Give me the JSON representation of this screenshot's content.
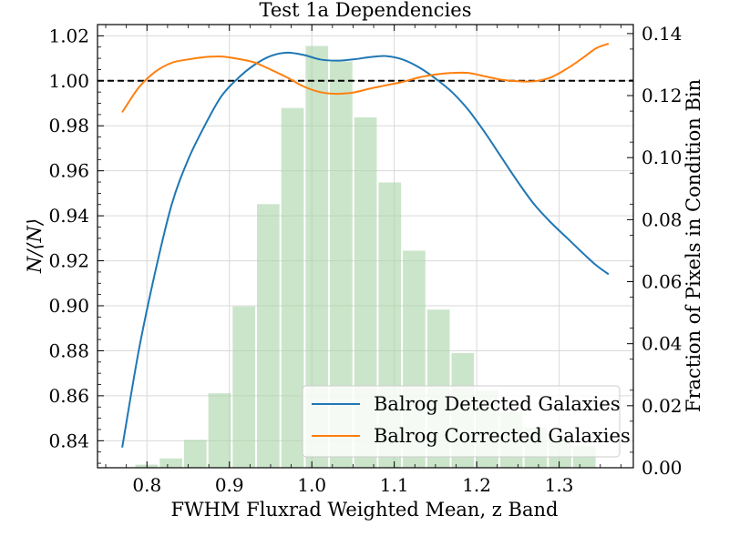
{
  "chart_data": {
    "type": "line",
    "title": "Test 1a Dependencies",
    "xlabel": "FWHM Fluxrad Weighted Mean, z Band",
    "ylabel": "N/⟨N⟩",
    "y2label": "Fraction of Pixels in Condition Bin",
    "xlim": [
      0.74,
      1.39
    ],
    "ylim": [
      0.828,
      1.025
    ],
    "y2lim": [
      0.0,
      0.1429
    ],
    "xticks": [
      "0.8",
      "0.9",
      "1.0",
      "1.1",
      "1.2",
      "1.3"
    ],
    "yticks": [
      "0.84",
      "0.86",
      "0.88",
      "0.90",
      "0.92",
      "0.94",
      "0.96",
      "0.98",
      "1.00",
      "1.02"
    ],
    "y2ticks": [
      "0.00",
      "0.02",
      "0.04",
      "0.06",
      "0.08",
      "0.10",
      "0.12",
      "0.14"
    ],
    "grid": true,
    "legend_position": "lower-right",
    "reference_line": {
      "y": 1.0,
      "style": "dashed",
      "color": "#000000"
    },
    "histogram": {
      "color": "#a9d3a6",
      "axis": "right",
      "bin_width": 0.0295,
      "bins": [
        {
          "x": 0.7701,
          "value": 0.0
        },
        {
          "x": 0.7996,
          "value": 0.001
        },
        {
          "x": 0.8291,
          "value": 0.003
        },
        {
          "x": 0.8586,
          "value": 0.009
        },
        {
          "x": 0.8881,
          "value": 0.024
        },
        {
          "x": 0.9176,
          "value": 0.052
        },
        {
          "x": 0.9471,
          "value": 0.085
        },
        {
          "x": 0.9766,
          "value": 0.116
        },
        {
          "x": 1.0061,
          "value": 0.136
        },
        {
          "x": 1.0356,
          "value": 0.131
        },
        {
          "x": 1.0651,
          "value": 0.113
        },
        {
          "x": 1.0946,
          "value": 0.092
        },
        {
          "x": 1.1241,
          "value": 0.07
        },
        {
          "x": 1.1536,
          "value": 0.051
        },
        {
          "x": 1.1831,
          "value": 0.037
        },
        {
          "x": 1.2126,
          "value": 0.025
        },
        {
          "x": 1.2421,
          "value": 0.018
        },
        {
          "x": 1.2716,
          "value": 0.013
        },
        {
          "x": 1.3011,
          "value": 0.01
        },
        {
          "x": 1.3306,
          "value": 0.007
        },
        {
          "x": 1.3601,
          "value": 0.0
        }
      ]
    },
    "series": [
      {
        "name": "Balrog Detected Galaxies",
        "color": "#1f77b4",
        "x": [
          0.77,
          0.79,
          0.81,
          0.83,
          0.85,
          0.87,
          0.89,
          0.91,
          0.93,
          0.95,
          0.97,
          0.99,
          1.01,
          1.03,
          1.05,
          1.07,
          1.09,
          1.11,
          1.13,
          1.15,
          1.17,
          1.19,
          1.21,
          1.23,
          1.25,
          1.27,
          1.29,
          1.31,
          1.33,
          1.345,
          1.36
        ],
        "y": [
          0.837,
          0.88,
          0.915,
          0.945,
          0.965,
          0.98,
          0.993,
          1.001,
          1.007,
          1.011,
          1.0125,
          1.0115,
          1.0095,
          1.009,
          1.0095,
          1.0105,
          1.011,
          1.0095,
          1.006,
          1.001,
          0.995,
          0.987,
          0.977,
          0.966,
          0.955,
          0.945,
          0.937,
          0.93,
          0.923,
          0.918,
          0.914
        ]
      },
      {
        "name": "Balrog Corrected Galaxies",
        "color": "#ff7f0e",
        "x": [
          0.77,
          0.79,
          0.81,
          0.83,
          0.85,
          0.87,
          0.89,
          0.91,
          0.93,
          0.95,
          0.97,
          0.99,
          1.01,
          1.03,
          1.05,
          1.07,
          1.09,
          1.11,
          1.13,
          1.15,
          1.17,
          1.19,
          1.21,
          1.23,
          1.25,
          1.27,
          1.29,
          1.31,
          1.33,
          1.345,
          1.36
        ],
        "y": [
          0.986,
          0.997,
          1.004,
          1.008,
          1.0095,
          1.0105,
          1.0108,
          1.0098,
          1.0082,
          1.005,
          1.0015,
          0.9975,
          0.995,
          0.9942,
          0.9948,
          0.9965,
          0.998,
          0.9995,
          1.0015,
          1.0028,
          1.0035,
          1.0035,
          1.002,
          1.0005,
          0.9998,
          0.9998,
          1.0015,
          1.0055,
          1.0105,
          1.0145,
          1.0165
        ]
      }
    ]
  }
}
